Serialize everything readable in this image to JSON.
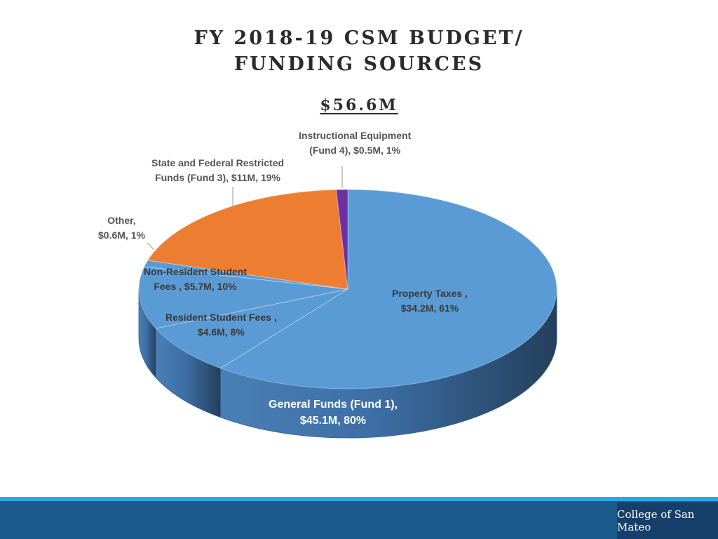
{
  "chart_data": {
    "type": "pie",
    "title_lines": [
      "FY 2018-19 CSM BUDGET/",
      "FUNDING SOURCES"
    ],
    "subtitle": "$56.6M",
    "slices": [
      {
        "name": "Property Taxes",
        "value": 34.2,
        "percent": 61,
        "color": "#5b9bd5",
        "group": "General Funds (Fund 1)",
        "label_lines": [
          "Property Taxes ,",
          "$34.2M, 61%"
        ]
      },
      {
        "name": "Resident Student Fees",
        "value": 4.6,
        "percent": 8,
        "color": "#5b9bd5",
        "group": "General Funds (Fund 1)",
        "label_lines": [
          "Resident Student Fees ,",
          "$4.6M, 8%"
        ]
      },
      {
        "name": "Non-Resident Student Fees",
        "value": 5.7,
        "percent": 10,
        "color": "#5b9bd5",
        "group": "General Funds (Fund 1)",
        "label_lines": [
          "Non-Resident Student",
          "Fees , $5.7M, 10%"
        ]
      },
      {
        "name": "Other",
        "value": 0.6,
        "percent": 1,
        "color": "#5b9bd5",
        "group": "General Funds (Fund 1)",
        "label_lines": [
          "Other,",
          "$0.6M, 1%"
        ]
      },
      {
        "name": "State and Federal Restricted Funds (Fund 3)",
        "value": 11,
        "percent": 19,
        "color": "#ed7d31",
        "label_lines": [
          "State and Federal Restricted",
          "Funds (Fund 3), $11M, 19%"
        ]
      },
      {
        "name": "Instructional Equipment (Fund 4)",
        "value": 0.5,
        "percent": 1,
        "color": "#7030a0",
        "label_lines": [
          "Instructional Equipment",
          "(Fund 4), $0.5M, 1%"
        ]
      }
    ],
    "group_label": {
      "name": "General Funds (Fund 1)",
      "value": 45.1,
      "percent": 80,
      "label_lines": [
        "General Funds (Fund 1),",
        "$45.1M, 80%"
      ]
    },
    "legend": "none"
  },
  "footer": {
    "logo_text": "College of San Mateo",
    "logo_color": "#173f6b",
    "bar_color": "#1b5b8c",
    "accent_line_color": "#2ea7e0"
  }
}
